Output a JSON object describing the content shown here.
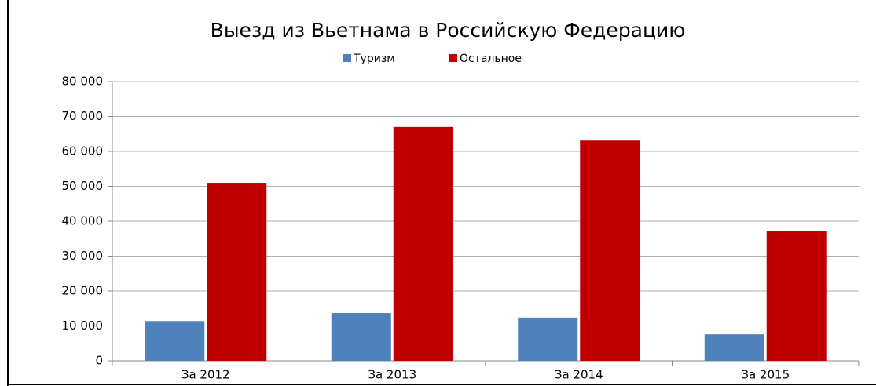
{
  "chart_data": {
    "type": "bar",
    "title": "Выезд из Вьетнама в  Российскую Федерацию",
    "categories": [
      "За 2012",
      "За 2013",
      "За 2014",
      "За 2015"
    ],
    "series": [
      {
        "name": "Туризм",
        "color": "#4f81bd",
        "values": [
          11400,
          13700,
          12400,
          7600
        ]
      },
      {
        "name": "Остальное",
        "color": "#c00000",
        "values": [
          51000,
          67000,
          63100,
          37100
        ]
      }
    ],
    "ylim": [
      0,
      80000
    ],
    "yticks": [
      0,
      {
        "value": 10000,
        "label": "10 000"
      },
      {
        "value": 20000,
        "label": "20 000"
      },
      {
        "value": 30000,
        "label": "30 000"
      },
      {
        "value": 40000,
        "label": "40 000"
      },
      {
        "value": 50000,
        "label": "50 000"
      },
      {
        "value": 60000,
        "label": "60 000"
      },
      {
        "value": 70000,
        "label": "70 000"
      },
      {
        "value": 80000,
        "label": "80 000"
      }
    ],
    "grid": true,
    "legend": "top"
  }
}
